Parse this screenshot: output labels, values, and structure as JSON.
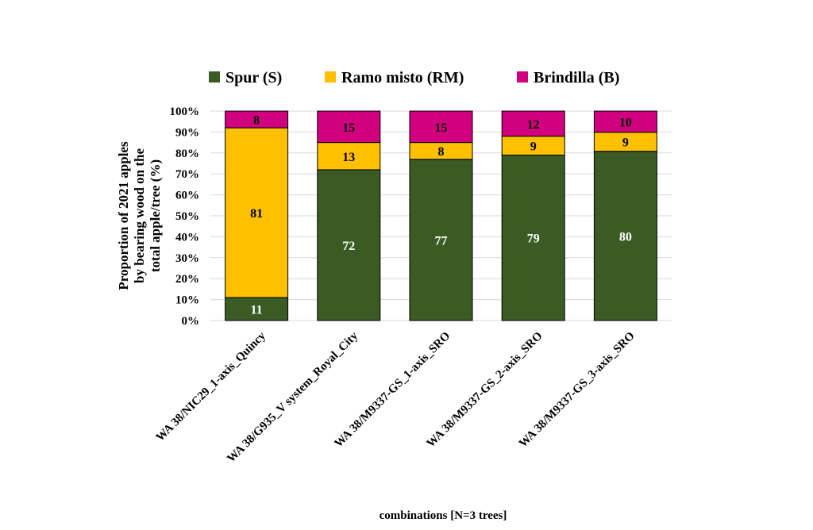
{
  "chart_data": {
    "type": "bar",
    "stacked": true,
    "percent_stacked": true,
    "categories": [
      "WA 38/NIC29_1-axis_Quincy",
      "WA 38/G935_V system_Royal_City",
      "WA 38/M9337-GS_1-axis_SRO",
      "WA 38/M9337-GS_2-axis_SRO",
      "WA 38/M9337-GS_3-axis_SRO"
    ],
    "series": [
      {
        "name": "Spur (S)",
        "color": "#3a5c24",
        "label_color": "#ffffff",
        "values": [
          11,
          72,
          77,
          79,
          80
        ]
      },
      {
        "name": "Ramo misto (RM)",
        "color": "#ffc000",
        "label_color": "#000000",
        "values": [
          81,
          13,
          8,
          9,
          9
        ]
      },
      {
        "name": "Brindilla (B)",
        "color": "#d0007f",
        "label_color": "#000000",
        "values": [
          8,
          15,
          15,
          12,
          10
        ]
      }
    ],
    "ylabel": "Proportion of 2021 apples by bearing wood on the total apple/tree (%)",
    "ylabel_lines": [
      "Proportion of 2021 apples",
      "by bearing wood on the",
      "total apple/tree (%)"
    ],
    "xlabel": "combinations [N=3 trees]",
    "ylim": [
      0,
      100
    ],
    "yticks": [
      "0%",
      "10%",
      "20%",
      "30%",
      "40%",
      "50%",
      "60%",
      "70%",
      "80%",
      "90%",
      "100%"
    ],
    "grid": true,
    "legend_position": "top"
  }
}
